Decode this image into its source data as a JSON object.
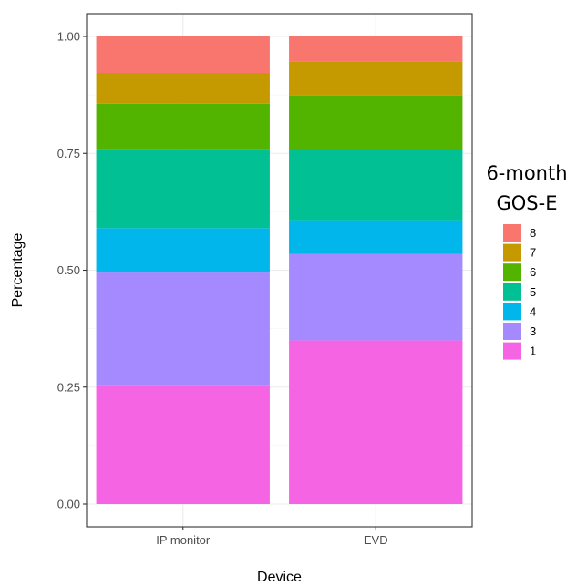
{
  "chart_data": {
    "type": "bar",
    "stacked": true,
    "xlabel": "Device",
    "ylabel": "Percentage",
    "ylim": [
      0,
      1
    ],
    "yticks": [
      "0.00",
      "0.25",
      "0.50",
      "0.75",
      "1.00"
    ],
    "categories": [
      "IP monitor",
      "EVD"
    ],
    "legend": {
      "title_line1": "6-month",
      "title_line2": "GOS-E",
      "placement": "right"
    },
    "grid": true,
    "series": [
      {
        "name": "1",
        "color": "#F564E3",
        "values": [
          0.255,
          0.35
        ]
      },
      {
        "name": "3",
        "color": "#A58AFF",
        "values": [
          0.24,
          0.185
        ]
      },
      {
        "name": "4",
        "color": "#00B6EB",
        "values": [
          0.095,
          0.072
        ]
      },
      {
        "name": "5",
        "color": "#00C094",
        "values": [
          0.167,
          0.153
        ]
      },
      {
        "name": "6",
        "color": "#53B400",
        "values": [
          0.099,
          0.114
        ]
      },
      {
        "name": "7",
        "color": "#C49A00",
        "values": [
          0.066,
          0.073
        ]
      },
      {
        "name": "8",
        "color": "#F8766D",
        "values": [
          0.078,
          0.053
        ]
      }
    ]
  }
}
